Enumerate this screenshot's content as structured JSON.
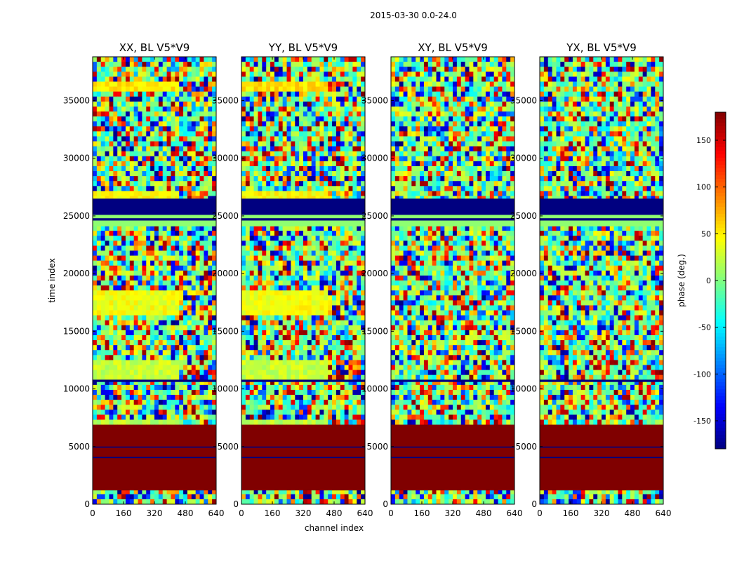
{
  "chart_data": {
    "type": "heatmap",
    "suptitle": "2015-03-30 0.0-24.0",
    "xlabel": "channel index",
    "ylabel": "time index",
    "xlim": [
      0,
      640
    ],
    "ylim": [
      0,
      38800
    ],
    "xticks": [
      0,
      160,
      320,
      480,
      640
    ],
    "yticks": [
      0,
      5000,
      10000,
      15000,
      20000,
      25000,
      30000,
      35000
    ],
    "panels": [
      {
        "title": "XX, BL V5*V9",
        "pol": "XX"
      },
      {
        "title": "YY, BL V5*V9",
        "pol": "YY"
      },
      {
        "title": "XY, BL V5*V9",
        "pol": "XY"
      },
      {
        "title": "YX, BL V5*V9",
        "pol": "YX"
      }
    ],
    "colorbar": {
      "label": "phase (deg.)",
      "range": [
        -180,
        180
      ],
      "ticks": [
        -150,
        -100,
        -50,
        0,
        50,
        100,
        150
      ],
      "colormap": "jet"
    },
    "bands": [
      {
        "t0": 0,
        "t1": 1200,
        "kind": "noise"
      },
      {
        "t0": 1200,
        "t1": 6700,
        "kind": "const",
        "phase": 180
      },
      {
        "t0": 4900,
        "t1": 5000,
        "kind": "const",
        "phase": -180
      },
      {
        "t0": 4000,
        "t1": 4100,
        "kind": "const",
        "phase": -180
      },
      {
        "t0": 6700,
        "t1": 7300,
        "kind": "parallel_stripe",
        "phase": 20
      },
      {
        "t0": 7300,
        "t1": 10600,
        "kind": "noise"
      },
      {
        "t0": 10600,
        "t1": 10800,
        "kind": "const",
        "phase": -180
      },
      {
        "t0": 10800,
        "t1": 12400,
        "kind": "parallel_stripe",
        "phase": 25
      },
      {
        "t0": 12400,
        "t1": 16400,
        "kind": "noise"
      },
      {
        "t0": 16400,
        "t1": 18500,
        "kind": "parallel_stripe",
        "phase": 40
      },
      {
        "t0": 18500,
        "t1": 24100,
        "kind": "noise"
      },
      {
        "t0": 24100,
        "t1": 24600,
        "kind": "const",
        "phase": 5
      },
      {
        "t0": 24600,
        "t1": 24800,
        "kind": "const",
        "phase": -180
      },
      {
        "t0": 24800,
        "t1": 25100,
        "kind": "const",
        "phase": 5
      },
      {
        "t0": 25100,
        "t1": 26500,
        "kind": "const",
        "phase": -180
      },
      {
        "t0": 26500,
        "t1": 27200,
        "kind": "parallel_stripe",
        "phase": 45
      },
      {
        "t0": 27200,
        "t1": 35800,
        "kind": "noise"
      },
      {
        "t0": 35800,
        "t1": 36600,
        "kind": "parallel_stripe",
        "phase": 55
      },
      {
        "t0": 36600,
        "t1": 38800,
        "kind": "noise"
      }
    ]
  }
}
